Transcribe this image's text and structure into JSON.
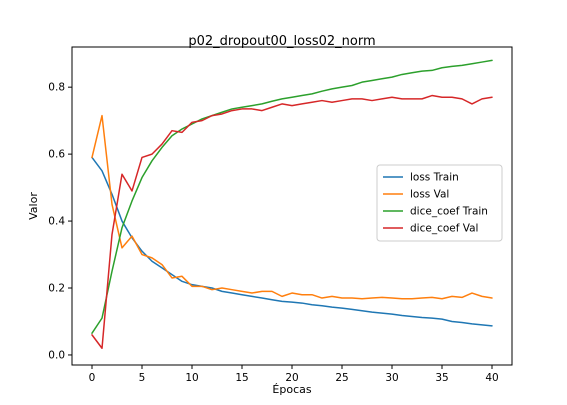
{
  "chart_data": {
    "type": "line",
    "title": "p02_dropout00_loss02_norm",
    "xlabel": "Épocas",
    "ylabel": "Valor",
    "xlim": [
      -2,
      42
    ],
    "ylim": [
      -0.03,
      0.92
    ],
    "xticks": [
      0,
      5,
      10,
      15,
      20,
      25,
      30,
      35,
      40
    ],
    "yticks": [
      0.0,
      0.2,
      0.4,
      0.6,
      0.8
    ],
    "ytick_labels": [
      "0.0",
      "0.2",
      "0.4",
      "0.6",
      "0.8"
    ],
    "grid": false,
    "legend_position": "center-right",
    "x": [
      0,
      1,
      2,
      3,
      4,
      5,
      6,
      7,
      8,
      9,
      10,
      11,
      12,
      13,
      14,
      15,
      16,
      17,
      18,
      19,
      20,
      21,
      22,
      23,
      24,
      25,
      26,
      27,
      28,
      29,
      30,
      31,
      32,
      33,
      34,
      35,
      36,
      37,
      38,
      39,
      40
    ],
    "series": [
      {
        "name": "loss Train",
        "color": "#1f77b4",
        "values": [
          0.59,
          0.55,
          0.48,
          0.4,
          0.35,
          0.31,
          0.28,
          0.26,
          0.24,
          0.22,
          0.21,
          0.205,
          0.2,
          0.19,
          0.185,
          0.18,
          0.175,
          0.17,
          0.165,
          0.16,
          0.158,
          0.155,
          0.15,
          0.147,
          0.143,
          0.14,
          0.136,
          0.132,
          0.128,
          0.125,
          0.122,
          0.118,
          0.115,
          0.112,
          0.11,
          0.107,
          0.1,
          0.097,
          0.093,
          0.09,
          0.087
        ]
      },
      {
        "name": "loss Val",
        "color": "#ff7f0e",
        "values": [
          0.59,
          0.715,
          0.45,
          0.32,
          0.355,
          0.3,
          0.29,
          0.27,
          0.23,
          0.235,
          0.205,
          0.205,
          0.195,
          0.2,
          0.195,
          0.19,
          0.185,
          0.19,
          0.19,
          0.175,
          0.185,
          0.18,
          0.18,
          0.17,
          0.175,
          0.17,
          0.17,
          0.168,
          0.17,
          0.172,
          0.17,
          0.168,
          0.168,
          0.17,
          0.172,
          0.168,
          0.175,
          0.172,
          0.185,
          0.175,
          0.17
        ]
      },
      {
        "name": "dice_coef Train",
        "color": "#2ca02c",
        "values": [
          0.065,
          0.11,
          0.25,
          0.38,
          0.46,
          0.53,
          0.58,
          0.62,
          0.655,
          0.675,
          0.69,
          0.705,
          0.715,
          0.725,
          0.735,
          0.74,
          0.745,
          0.75,
          0.758,
          0.765,
          0.77,
          0.775,
          0.78,
          0.788,
          0.795,
          0.8,
          0.805,
          0.815,
          0.82,
          0.825,
          0.83,
          0.838,
          0.843,
          0.848,
          0.85,
          0.858,
          0.862,
          0.865,
          0.87,
          0.875,
          0.88
        ]
      },
      {
        "name": "dice_coef Val",
        "color": "#d62728",
        "values": [
          0.06,
          0.02,
          0.36,
          0.54,
          0.49,
          0.59,
          0.6,
          0.63,
          0.67,
          0.665,
          0.695,
          0.7,
          0.715,
          0.72,
          0.73,
          0.735,
          0.735,
          0.73,
          0.74,
          0.75,
          0.745,
          0.75,
          0.755,
          0.76,
          0.755,
          0.76,
          0.765,
          0.765,
          0.76,
          0.765,
          0.77,
          0.765,
          0.765,
          0.765,
          0.775,
          0.77,
          0.77,
          0.765,
          0.75,
          0.765,
          0.77
        ]
      }
    ]
  }
}
